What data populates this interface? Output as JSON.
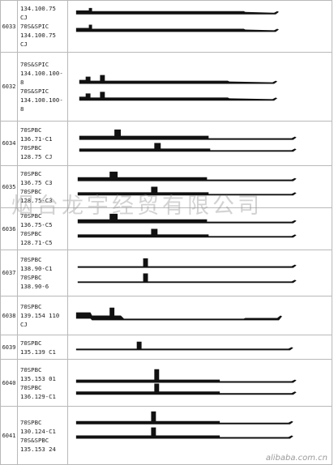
{
  "rows": [
    {
      "code": "6033",
      "spec": [
        "134.100.75",
        "CJ",
        "70S&SPIC",
        "134.100.75",
        "CJ"
      ]
    },
    {
      "code": "6032",
      "spec": [
        "70S&SPIC",
        "134.100.100-",
        "8",
        "70S&SPIC",
        "134.100.100-",
        "8"
      ]
    },
    {
      "code": "6034",
      "spec": [
        "70SPBC",
        "136.71-C1",
        "70SPBC",
        "128.75 CJ"
      ]
    },
    {
      "code": "6035",
      "spec": [
        "70SPBC",
        "136.75 C3",
        "70SPBC",
        "128.75-C3"
      ]
    },
    {
      "code": "6036",
      "spec": [
        "70SPBC",
        "136.75-C5",
        "70SPBC",
        "128.71-C5"
      ]
    },
    {
      "code": "6037",
      "spec": [
        "70SPBC",
        "138.90-C1",
        "70SPBC",
        "138.90-6"
      ]
    },
    {
      "code": "6038",
      "spec": [
        "70SPBC",
        "139.154 110",
        "CJ"
      ]
    },
    {
      "code": "6039",
      "spec": [
        "70SPBC",
        "135.139 C1"
      ]
    },
    {
      "code": "6040",
      "spec": [
        "70SPBC",
        "135.153 01",
        "70SPBC",
        "136.129-C1"
      ]
    },
    {
      "code": "6041",
      "spec": [
        "70SPBC",
        "130.124-C1",
        "70S&SPBC",
        "135.153 24"
      ]
    }
  ],
  "watermark": "烟台龙宇经贸有限公司",
  "site_mark": "alibaba.com.cn"
}
